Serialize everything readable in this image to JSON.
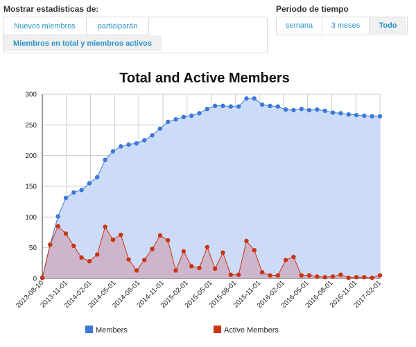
{
  "filters": {
    "stats_label": "Mostrar estadísticas de:",
    "stats_options": [
      "Nuevos miembros",
      "participarán",
      "Miembros en total y miembros activos"
    ],
    "selected_stats_index": 2,
    "period_label": "Periodo de tiempo",
    "period_options": [
      "semana",
      "3 meses",
      "Todo"
    ],
    "selected_period_index": 2
  },
  "chart_data": {
    "type": "area",
    "title": "Total and Active Members",
    "xlabel": "",
    "ylabel": "",
    "ylim": [
      0,
      300
    ],
    "yticks": [
      0,
      50,
      100,
      150,
      200,
      250,
      300
    ],
    "grid": true,
    "legend_position": "bottom",
    "x_tick_labels": [
      "2013-08-10",
      "2013-11-01",
      "2014-02-01",
      "2014-05-01",
      "2014-08-01",
      "2014-11-01",
      "2015-02-01",
      "2015-05-01",
      "2015-08-01",
      "2015-11-01",
      "2016-02-01",
      "2016-05-01",
      "2016-08-01",
      "2016-11-01",
      "2017-02-01"
    ],
    "series": [
      {
        "name": "Members",
        "color": "#3c78d8",
        "fill": "#c9daf8",
        "values": [
          1,
          55,
          101,
          131,
          140,
          144,
          155,
          165,
          193,
          207,
          215,
          218,
          220,
          225,
          233,
          244,
          255,
          259,
          263,
          265,
          269,
          276,
          281,
          281,
          280,
          280,
          293,
          293,
          283,
          281,
          280,
          275,
          274,
          276,
          274,
          275,
          273,
          270,
          269,
          267,
          266,
          265,
          264,
          264
        ]
      },
      {
        "name": "Active Members",
        "color": "#cc3311",
        "fill": "#ccb2c8",
        "values": [
          1,
          55,
          85,
          73,
          53,
          34,
          28,
          39,
          84,
          63,
          71,
          31,
          13,
          30,
          48,
          70,
          62,
          13,
          44,
          20,
          17,
          51,
          16,
          42,
          6,
          6,
          61,
          46,
          10,
          5,
          5,
          30,
          35,
          5,
          5,
          3,
          2,
          3,
          6,
          1,
          2,
          2,
          1,
          5
        ]
      }
    ]
  }
}
